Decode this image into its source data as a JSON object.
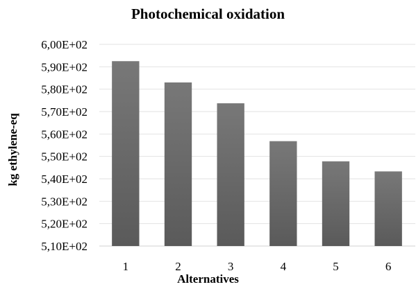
{
  "chart_data": {
    "type": "bar",
    "title": "Photochemical oxidation",
    "xlabel": "Alternatives",
    "ylabel": "kg ethylene-eq",
    "categories": [
      "1",
      "2",
      "3",
      "4",
      "5",
      "6"
    ],
    "values": [
      592.5,
      583,
      573.7,
      556.8,
      547.8,
      543.3
    ],
    "ylim": [
      510,
      600
    ],
    "yticks": [
      510,
      520,
      530,
      540,
      550,
      560,
      570,
      580,
      590,
      600
    ],
    "ytick_labels": [
      "5,10E+02",
      "5,20E+02",
      "5,30E+02",
      "5,40E+02",
      "5,50E+02",
      "5,60E+02",
      "5,70E+02",
      "5,80E+02",
      "5,90E+02",
      "6,00E+02"
    ],
    "grid": true,
    "bar_color": "#5a5a5a",
    "bar_color_top": "#787878",
    "grid_color": "#e2e2e2",
    "axis_color": "#d0d0d0"
  }
}
